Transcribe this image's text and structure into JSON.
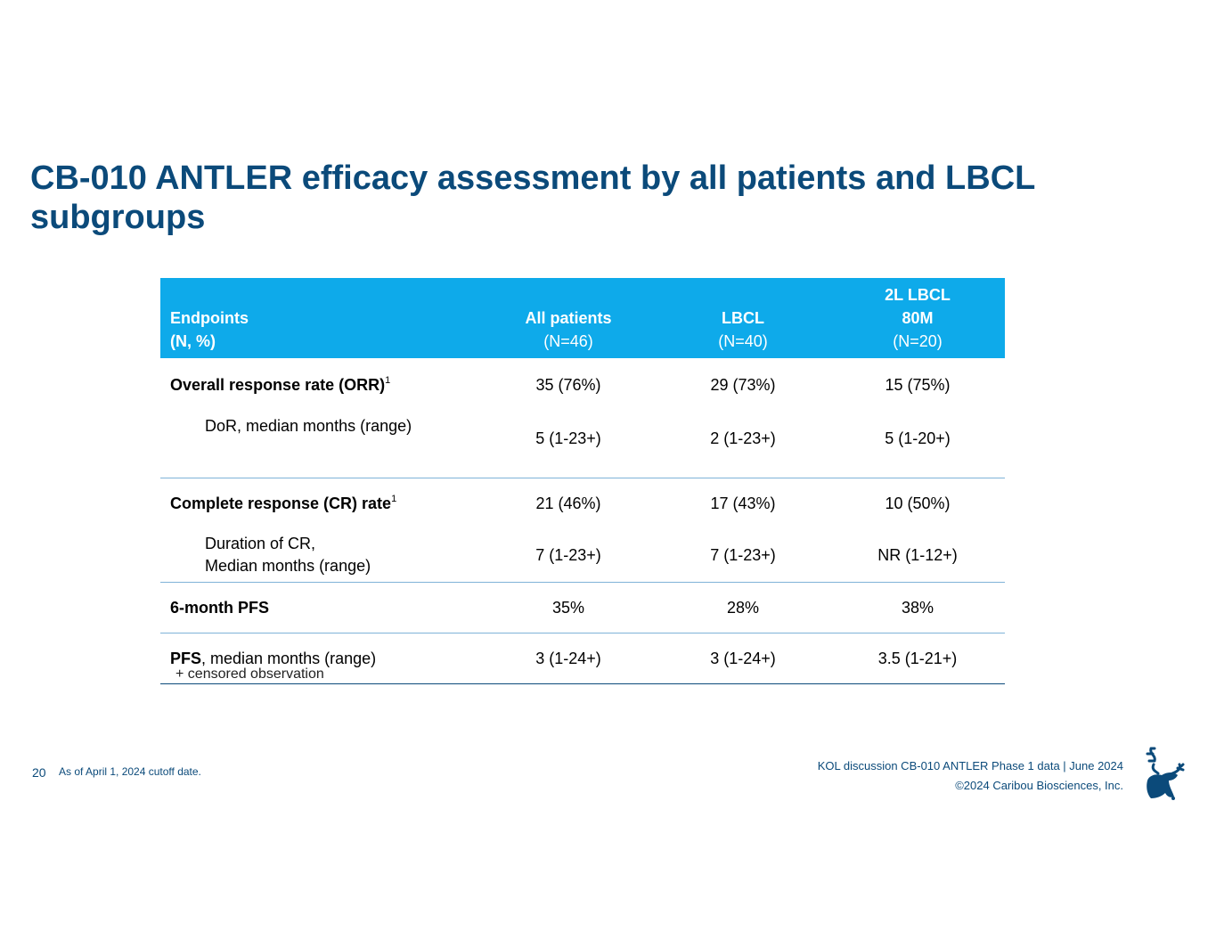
{
  "title": "CB-010 ANTLER efficacy assessment by all patients and LBCL subgroups",
  "table": {
    "header": {
      "col0_line1": "Endpoints",
      "col0_line2": "(N, %)",
      "col1_name": "All patients",
      "col1_n": "(N=46)",
      "col2_name": "LBCL",
      "col2_n": "(N=40)",
      "col3_line1": "2L LBCL",
      "col3_line2": "80M",
      "col3_n": "(N=20)"
    },
    "rows": [
      {
        "label": "Overall response rate (ORR)",
        "sup": "1",
        "values": [
          "35 (76%)",
          "29 (73%)",
          "15 (75%)"
        ]
      },
      {
        "label": "DoR, median months (range)",
        "values": [
          "5 (1-23+)",
          "2 (1-23+)",
          "5 (1-20+)"
        ]
      },
      {
        "label": "Complete response (CR) rate",
        "sup": "1",
        "values": [
          "21 (46%)",
          "17 (43%)",
          "10 (50%)"
        ]
      },
      {
        "label_line1": "Duration of CR,",
        "label_line2": "Median months (range)",
        "values": [
          "7 (1-23+)",
          "7 (1-23+)",
          "NR (1-12+)"
        ]
      },
      {
        "label": "6-month PFS",
        "values": [
          "35%",
          "28%",
          "38%"
        ]
      },
      {
        "label_bold": "PFS",
        "label_rest": ", median months (range)",
        "values": [
          "3 (1-24+)",
          "3 (1-24+)",
          "3.5 (1-21+)"
        ]
      }
    ]
  },
  "footnote": "+ censored observation",
  "page_number": "20",
  "cutoff_note": "As of April 1, 2024 cutoff date.",
  "footer_line1": "KOL discussion CB-010 ANTLER Phase 1 data | June 2024",
  "footer_line2": "©2024 Caribou Biosciences, Inc.",
  "colors": {
    "title": "#0b4a7a",
    "header_bg": "#0eaaea",
    "divider": "#7fb3d8"
  },
  "logo_icon": "caribou-logo-icon"
}
